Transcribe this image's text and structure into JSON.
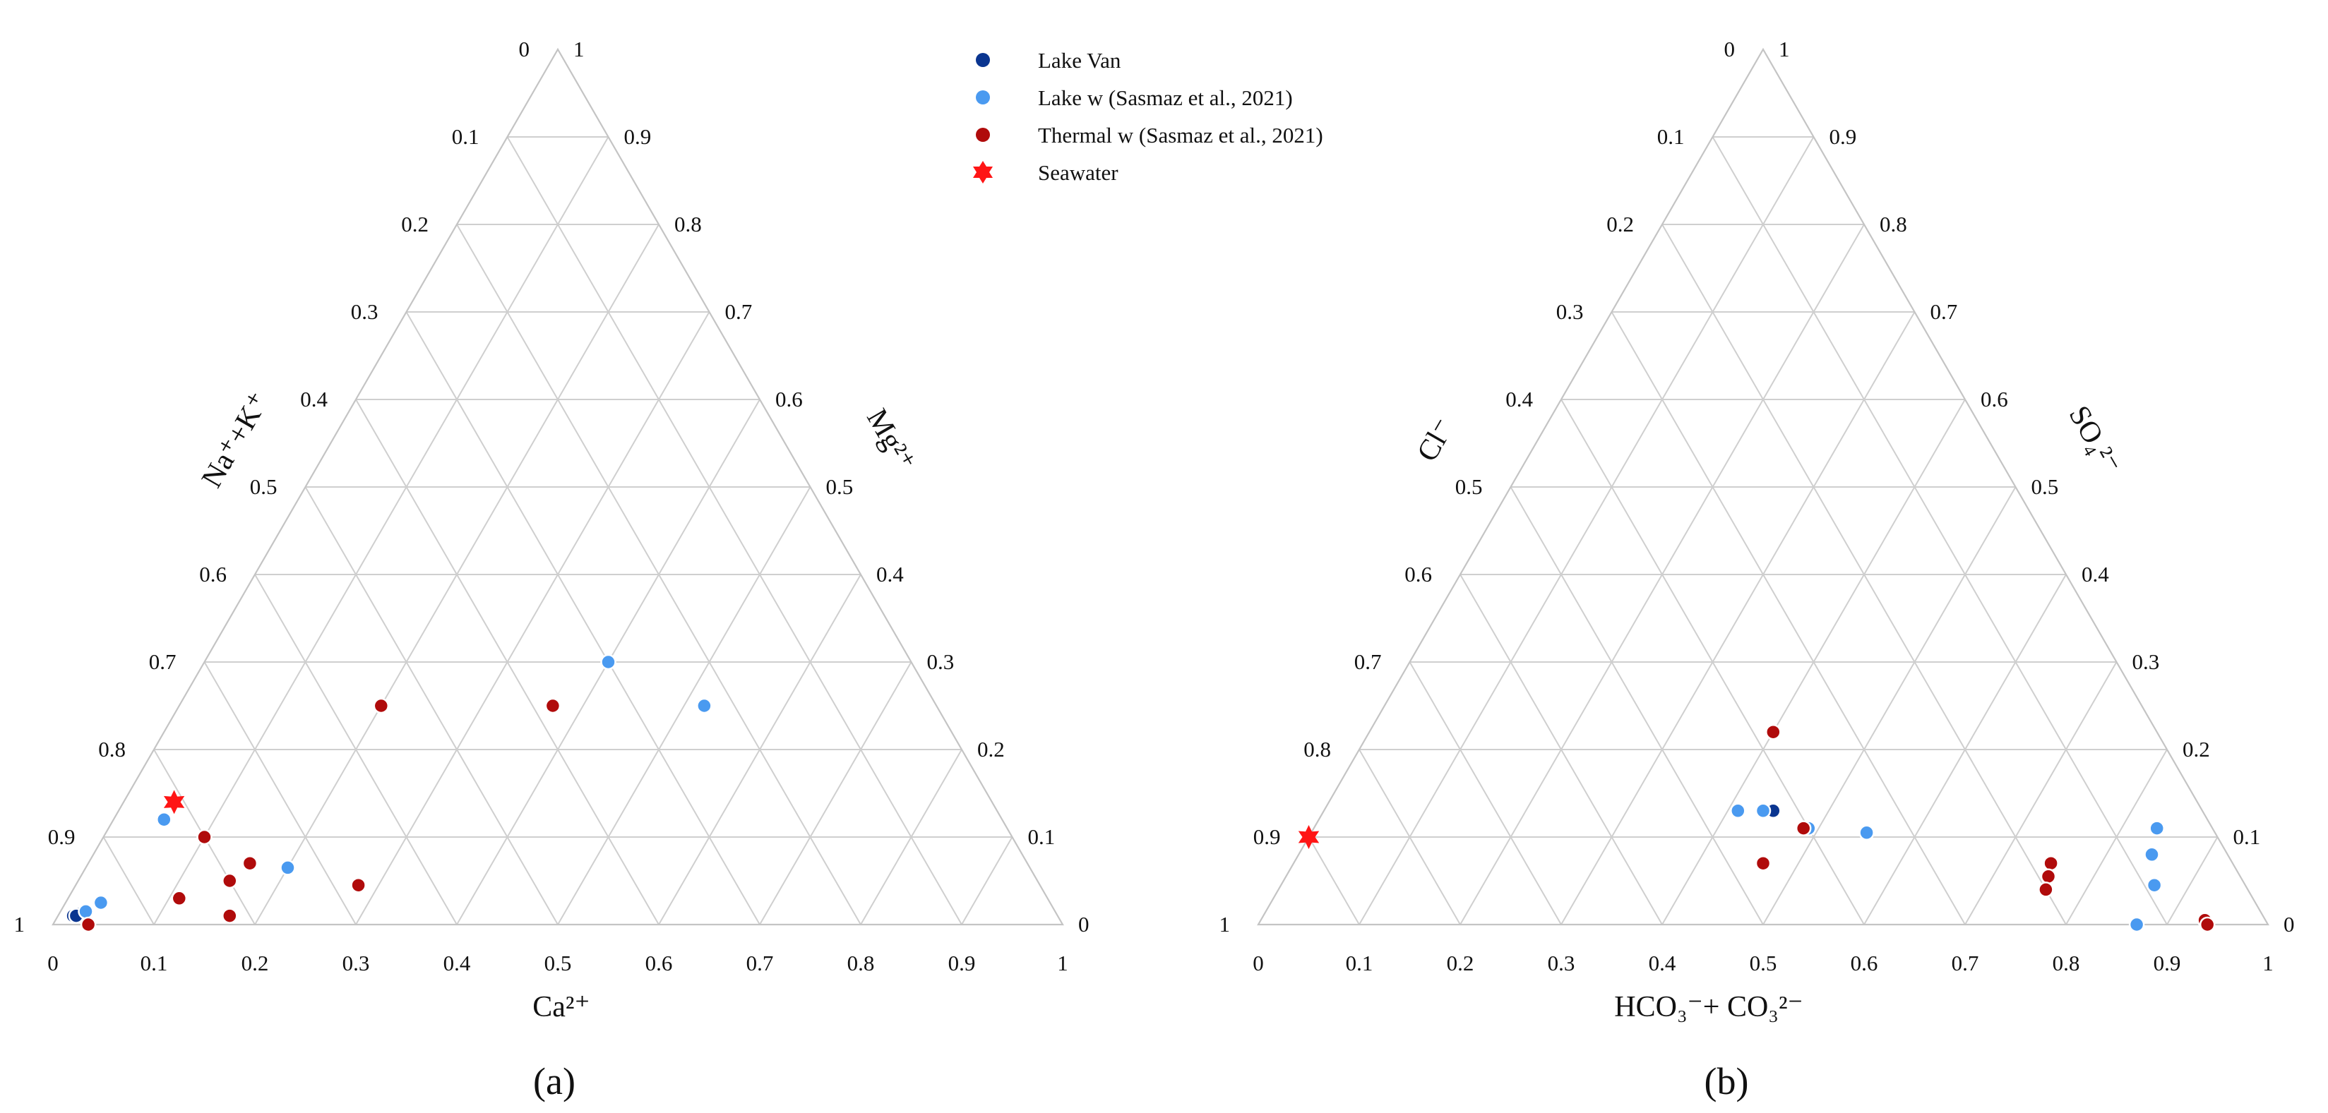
{
  "legend": [
    {
      "label": "Lake Van",
      "color": "#0a3590",
      "marker": "circle"
    },
    {
      "label": "Lake w (Sasmaz et al., 2021)",
      "color": "#4a9af0",
      "marker": "circle"
    },
    {
      "label": "Thermal w (Sasmaz et al., 2021)",
      "color": "#b00b0b",
      "marker": "circle"
    },
    {
      "label": "Seawater",
      "color": "#ff1515",
      "marker": "star"
    }
  ],
  "chart_data": [
    {
      "type": "scatter",
      "subtype": "ternary",
      "panel_label": "(a)",
      "components": {
        "bottom": "Ca²⁺",
        "left": "Na⁺+K⁺",
        "right": "Mg²⁺"
      },
      "ticks": [
        "0",
        "0.1",
        "0.2",
        "0.3",
        "0.4",
        "0.5",
        "0.6",
        "0.7",
        "0.8",
        "0.9",
        "1"
      ],
      "grid": true,
      "series": [
        {
          "name": "Lake Van",
          "points": [
            {
              "ca": 0.015,
              "mg": 0.01
            },
            {
              "ca": 0.02,
              "mg": 0.012
            },
            {
              "ca": 0.018,
              "mg": 0.01
            }
          ]
        },
        {
          "name": "Lake w (Sasmaz et al., 2021)",
          "points": [
            {
              "ca": 0.025,
              "mg": 0.015
            },
            {
              "ca": 0.035,
              "mg": 0.025
            },
            {
              "ca": 0.05,
              "mg": 0.12
            },
            {
              "ca": 0.2,
              "mg": 0.065
            },
            {
              "ca": 0.4,
              "mg": 0.3
            },
            {
              "ca": 0.52,
              "mg": 0.25
            }
          ]
        },
        {
          "name": "Thermal w (Sasmaz et al., 2021)",
          "points": [
            {
              "ca": 0.035,
              "mg": 0.0
            },
            {
              "ca": 0.11,
              "mg": 0.03
            },
            {
              "ca": 0.1,
              "mg": 0.1
            },
            {
              "ca": 0.15,
              "mg": 0.05
            },
            {
              "ca": 0.17,
              "mg": 0.01
            },
            {
              "ca": 0.16,
              "mg": 0.07
            },
            {
              "ca": 0.28,
              "mg": 0.045
            },
            {
              "ca": 0.2,
              "mg": 0.25
            },
            {
              "ca": 0.37,
              "mg": 0.25
            }
          ]
        },
        {
          "name": "Seawater",
          "points": [
            {
              "ca": 0.05,
              "mg": 0.14
            }
          ]
        }
      ]
    },
    {
      "type": "scatter",
      "subtype": "ternary",
      "panel_label": "(b)",
      "components": {
        "bottom": "HCO₃⁻+ CO₃²⁻",
        "left": "Cl⁻",
        "right": "SO₄²⁻"
      },
      "ticks": [
        "0",
        "0.1",
        "0.2",
        "0.3",
        "0.4",
        "0.5",
        "0.6",
        "0.7",
        "0.8",
        "0.9",
        "1"
      ],
      "grid": true,
      "series": [
        {
          "name": "Lake Van",
          "points": [
            {
              "hco3": 0.44,
              "so4": 0.13
            },
            {
              "hco3": 0.445,
              "so4": 0.13
            }
          ]
        },
        {
          "name": "Lake w (Sasmaz et al., 2021)",
          "points": [
            {
              "hco3": 0.41,
              "so4": 0.13
            },
            {
              "hco3": 0.435,
              "so4": 0.13
            },
            {
              "hco3": 0.49,
              "so4": 0.11
            },
            {
              "hco3": 0.55,
              "so4": 0.105
            },
            {
              "hco3": 0.835,
              "so4": 0.11
            },
            {
              "hco3": 0.845,
              "so4": 0.08
            },
            {
              "hco3": 0.865,
              "so4": 0.045
            },
            {
              "hco3": 0.87,
              "so4": 0.0
            }
          ]
        },
        {
          "name": "Thermal w (Sasmaz et al., 2021)",
          "points": [
            {
              "hco3": 0.4,
              "so4": 0.22
            },
            {
              "hco3": 0.485,
              "so4": 0.11
            },
            {
              "hco3": 0.465,
              "so4": 0.07
            },
            {
              "hco3": 0.75,
              "so4": 0.07
            },
            {
              "hco3": 0.755,
              "so4": 0.055
            },
            {
              "hco3": 0.76,
              "so4": 0.04
            },
            {
              "hco3": 0.935,
              "so4": 0.005
            },
            {
              "hco3": 0.94,
              "so4": 0.0
            }
          ]
        },
        {
          "name": "Seawater",
          "points": [
            {
              "hco3": 0.0,
              "so4": 0.1
            }
          ]
        }
      ]
    }
  ]
}
